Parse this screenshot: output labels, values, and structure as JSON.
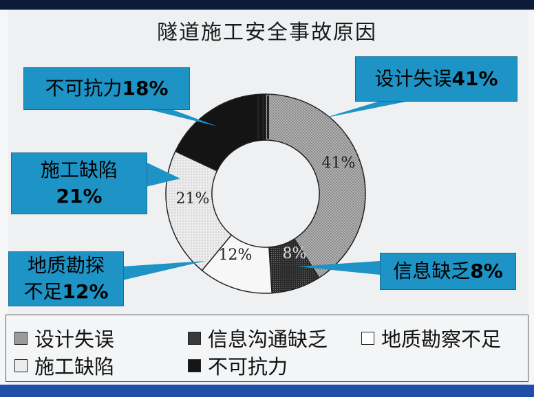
{
  "chart_data": {
    "type": "pie",
    "title": "隧道施工安全事故原因",
    "slices": [
      {
        "name": "设计失误",
        "value": 41,
        "label": "41%",
        "callout": [
          "设计失误41%"
        ],
        "color": "#a6a6a6"
      },
      {
        "name": "信息沟通缺乏",
        "value": 8,
        "label": "8%",
        "callout": [
          "信息缺乏8%"
        ],
        "color": "#3e3e3e"
      },
      {
        "name": "地质勘察不足",
        "value": 12,
        "label": "12%",
        "callout": [
          "地质勘探",
          "不足12%"
        ],
        "color": "#f7f7f7"
      },
      {
        "name": "施工缺陷",
        "value": 21,
        "label": "21%",
        "callout": [
          "施工缺陷",
          "21%"
        ],
        "color": "#e6e6e6"
      },
      {
        "name": "不可抗力",
        "value": 18,
        "label": "18%",
        "callout": [
          "不可抗力18%"
        ],
        "color": "#141414"
      }
    ],
    "legend": [
      "设计失误",
      "信息沟通缺乏",
      "地质勘察不足",
      "施工缺陷",
      "不可抗力"
    ],
    "legend_position": "bottom",
    "callout_color": "#1e93c6"
  }
}
